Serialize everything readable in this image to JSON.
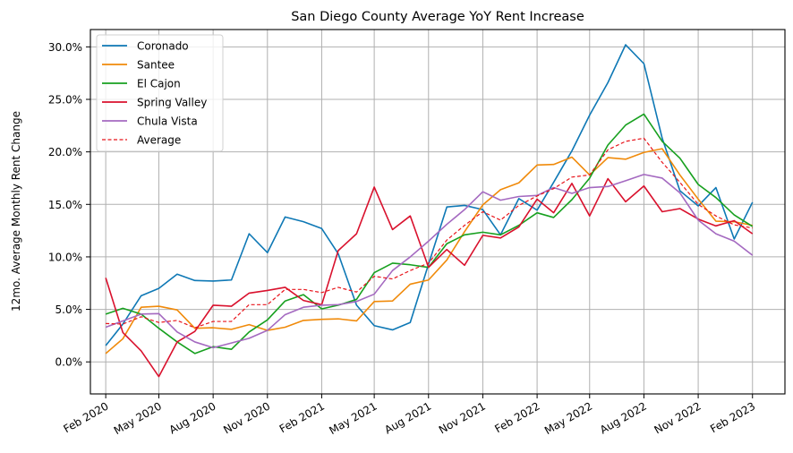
{
  "chart_data": {
    "type": "line",
    "title": "San Diego County Average YoY Rent Increase",
    "xlabel": "",
    "ylabel": "12mo. Average Monthly Rent Change",
    "x_is_date": true,
    "x": [
      "2020-02-01",
      "2020-03-01",
      "2020-04-01",
      "2020-05-01",
      "2020-06-01",
      "2020-07-01",
      "2020-08-01",
      "2020-09-01",
      "2020-10-01",
      "2020-11-01",
      "2020-12-01",
      "2021-01-01",
      "2021-02-01",
      "2021-03-01",
      "2021-04-01",
      "2021-05-01",
      "2021-06-01",
      "2021-07-01",
      "2021-08-01",
      "2021-09-01",
      "2021-10-01",
      "2021-11-01",
      "2021-12-01",
      "2022-01-01",
      "2022-02-01",
      "2022-03-01",
      "2022-04-01",
      "2022-05-01",
      "2022-06-01",
      "2022-07-01",
      "2022-08-01",
      "2022-09-01",
      "2022-10-01",
      "2022-11-01",
      "2022-12-01",
      "2023-01-01",
      "2023-02-01"
    ],
    "xlim": [
      "2020-01-06",
      "2023-03-28"
    ],
    "xticks": [
      {
        "date": "2020-02-01",
        "label": "Feb 2020"
      },
      {
        "date": "2020-05-01",
        "label": "May 2020"
      },
      {
        "date": "2020-08-01",
        "label": "Aug 2020"
      },
      {
        "date": "2020-11-01",
        "label": "Nov 2020"
      },
      {
        "date": "2021-02-01",
        "label": "Feb 2021"
      },
      {
        "date": "2021-05-01",
        "label": "May 2021"
      },
      {
        "date": "2021-08-01",
        "label": "Aug 2021"
      },
      {
        "date": "2021-11-01",
        "label": "Nov 2021"
      },
      {
        "date": "2022-02-01",
        "label": "Feb 2022"
      },
      {
        "date": "2022-05-01",
        "label": "May 2022"
      },
      {
        "date": "2022-08-01",
        "label": "Aug 2022"
      },
      {
        "date": "2022-11-01",
        "label": "Nov 2022"
      },
      {
        "date": "2023-02-01",
        "label": "Feb 2023"
      }
    ],
    "ylim": [
      -3.05,
      31.65
    ],
    "yticks": [
      {
        "value": 0,
        "label": "0.0%"
      },
      {
        "value": 5,
        "label": "5.0%"
      },
      {
        "value": 10,
        "label": "10.0%"
      },
      {
        "value": 15,
        "label": "15.0%"
      },
      {
        "value": 20,
        "label": "20.0%"
      },
      {
        "value": 25,
        "label": "25.0%"
      },
      {
        "value": 30,
        "label": "30.0%"
      }
    ],
    "grid": true,
    "legend_position": "top-left",
    "series": [
      {
        "name": "Coronado",
        "color": "#0e78b5",
        "dashed": false,
        "values": [
          1.55,
          3.6,
          6.3,
          7.0,
          8.35,
          7.75,
          7.7,
          7.8,
          12.2,
          10.4,
          13.8,
          13.35,
          12.7,
          10.3,
          5.4,
          3.45,
          3.05,
          3.75,
          9.3,
          14.75,
          14.9,
          14.5,
          12.1,
          15.55,
          14.45,
          17.1,
          20.1,
          23.5,
          26.6,
          30.2,
          28.4,
          21.3,
          16.3,
          14.85,
          16.6,
          11.7,
          15.2
        ]
      },
      {
        "name": "Santee",
        "color": "#f08a0a",
        "dashed": false,
        "values": [
          0.8,
          2.2,
          5.2,
          5.3,
          4.95,
          3.2,
          3.25,
          3.1,
          3.55,
          3.0,
          3.3,
          3.95,
          4.05,
          4.1,
          3.9,
          5.75,
          5.8,
          7.4,
          7.8,
          9.7,
          12.4,
          14.95,
          16.4,
          17.05,
          18.75,
          18.8,
          19.5,
          17.8,
          19.45,
          19.3,
          19.95,
          20.3,
          17.8,
          15.5,
          13.4,
          13.35,
          13.0
        ]
      },
      {
        "name": "El Cajon",
        "color": "#17a01f",
        "dashed": false,
        "values": [
          4.55,
          5.1,
          4.55,
          3.2,
          1.9,
          0.8,
          1.45,
          1.2,
          2.85,
          4.0,
          5.8,
          6.4,
          5.05,
          5.4,
          5.95,
          8.5,
          9.4,
          9.25,
          9.0,
          11.25,
          12.1,
          12.35,
          12.1,
          13.0,
          14.2,
          13.75,
          15.45,
          17.5,
          20.65,
          22.55,
          23.6,
          21.0,
          19.4,
          16.9,
          15.65,
          14.0,
          12.9
        ]
      },
      {
        "name": "Spring Valley",
        "color": "#d9112d",
        "dashed": false,
        "values": [
          8.0,
          2.8,
          1.05,
          -1.4,
          1.9,
          2.9,
          5.4,
          5.3,
          6.55,
          6.8,
          7.1,
          5.85,
          5.45,
          10.6,
          12.2,
          16.65,
          12.6,
          13.9,
          9.0,
          10.7,
          9.2,
          12.05,
          11.8,
          12.85,
          15.5,
          14.2,
          17.0,
          13.9,
          17.45,
          15.25,
          16.75,
          14.3,
          14.6,
          13.6,
          12.95,
          13.45,
          12.2
        ]
      },
      {
        "name": "Chula Vista",
        "color": "#a469c0",
        "dashed": false,
        "values": [
          3.3,
          3.9,
          4.55,
          4.6,
          2.85,
          1.9,
          1.35,
          1.8,
          2.25,
          3.0,
          4.5,
          5.2,
          5.4,
          5.45,
          5.75,
          6.45,
          8.7,
          10.0,
          11.5,
          13.1,
          14.5,
          16.2,
          15.4,
          15.75,
          15.85,
          16.6,
          16.05,
          16.6,
          16.7,
          17.25,
          17.85,
          17.5,
          16.1,
          13.5,
          12.2,
          11.5,
          10.15
        ]
      },
      {
        "name": "Average",
        "color": "#e8141b",
        "dashed": true,
        "values": [
          3.65,
          3.6,
          4.3,
          3.75,
          3.95,
          3.25,
          3.85,
          3.85,
          5.45,
          5.45,
          6.9,
          6.9,
          6.6,
          7.1,
          6.65,
          8.15,
          7.9,
          8.7,
          9.4,
          11.6,
          13.0,
          14.3,
          13.5,
          14.9,
          15.8,
          16.5,
          17.6,
          17.8,
          20.2,
          21.0,
          21.3,
          19.0,
          17.1,
          15.0,
          13.9,
          13.05,
          12.75
        ]
      }
    ]
  }
}
